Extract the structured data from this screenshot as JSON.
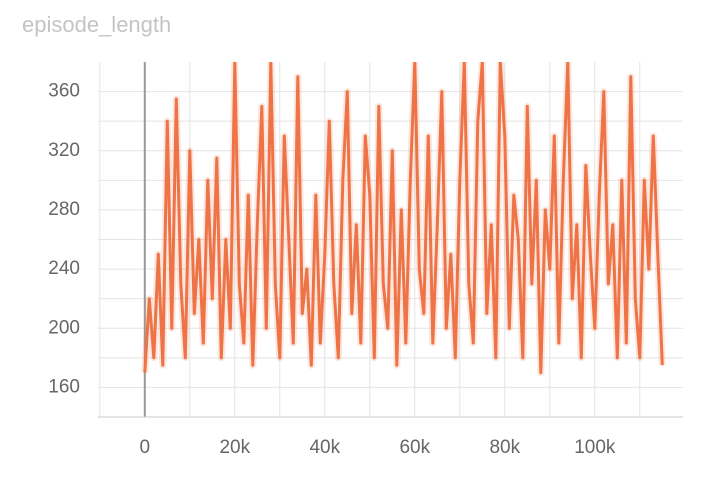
{
  "chart_data": {
    "type": "line",
    "title": "episode_length",
    "x": [
      0,
      1000,
      2000,
      3000,
      4000,
      5000,
      6000,
      7000,
      8000,
      9000,
      10000,
      11000,
      12000,
      13000,
      14000,
      15000,
      16000,
      17000,
      18000,
      19000,
      20000,
      21000,
      22000,
      23000,
      24000,
      25000,
      26000,
      27000,
      28000,
      29000,
      30000,
      31000,
      32000,
      33000,
      34000,
      35000,
      36000,
      37000,
      38000,
      39000,
      40000,
      41000,
      42000,
      43000,
      44000,
      45000,
      46000,
      47000,
      48000,
      49000,
      50000,
      51000,
      52000,
      53000,
      54000,
      55000,
      56000,
      57000,
      58000,
      59000,
      60000,
      61000,
      62000,
      63000,
      64000,
      65000,
      66000,
      67000,
      68000,
      69000,
      70000,
      71000,
      72000,
      73000,
      74000,
      75000,
      76000,
      77000,
      78000,
      79000,
      80000,
      81000,
      82000,
      83000,
      84000,
      85000,
      86000,
      87000,
      88000,
      89000,
      90000,
      91000,
      92000,
      93000,
      94000,
      95000,
      96000,
      97000,
      98000,
      99000,
      100000,
      101000,
      102000,
      103000,
      104000,
      105000,
      106000,
      107000,
      108000,
      109000,
      110000,
      111000,
      112000,
      113000,
      114000,
      115000
    ],
    "series": [
      {
        "color": "#ee7447",
        "values": [
          170,
          220,
          180,
          250,
          175,
          340,
          200,
          355,
          230,
          180,
          320,
          210,
          260,
          190,
          300,
          220,
          315,
          180,
          260,
          200,
          380,
          230,
          190,
          290,
          175,
          270,
          350,
          200,
          380,
          230,
          180,
          330,
          260,
          190,
          370,
          210,
          240,
          175,
          290,
          190,
          250,
          340,
          230,
          180,
          300,
          360,
          210,
          270,
          190,
          330,
          290,
          180,
          350,
          230,
          200,
          320,
          175,
          280,
          190,
          300,
          380,
          240,
          210,
          330,
          190,
          270,
          360,
          200,
          250,
          180,
          300,
          380,
          230,
          190,
          340,
          380,
          210,
          270,
          180,
          380,
          330,
          200,
          290,
          260,
          180,
          350,
          230,
          300,
          170,
          280,
          240,
          330,
          190,
          300,
          380,
          220,
          270,
          180,
          310,
          250,
          200,
          290,
          360,
          230,
          270,
          180,
          300,
          190,
          370,
          220,
          180,
          300,
          240,
          330,
          250,
          175
        ]
      }
    ],
    "xlim": [
      -10400,
      119600
    ],
    "ylim": [
      140,
      380
    ],
    "xticks": [
      0,
      {
        "value": 20000,
        "label": "20k"
      },
      {
        "value": 40000,
        "label": "40k"
      },
      {
        "value": 60000,
        "label": "60k"
      },
      {
        "value": 80000,
        "label": "80k"
      },
      {
        "value": 100000,
        "label": "100k"
      }
    ],
    "xminor": [
      -10000,
      10000,
      30000,
      50000,
      70000,
      90000,
      110000
    ],
    "yticks": [
      160,
      200,
      240,
      280,
      320,
      360
    ],
    "yminor": [
      180,
      220,
      260,
      300,
      340
    ],
    "grid": true
  }
}
